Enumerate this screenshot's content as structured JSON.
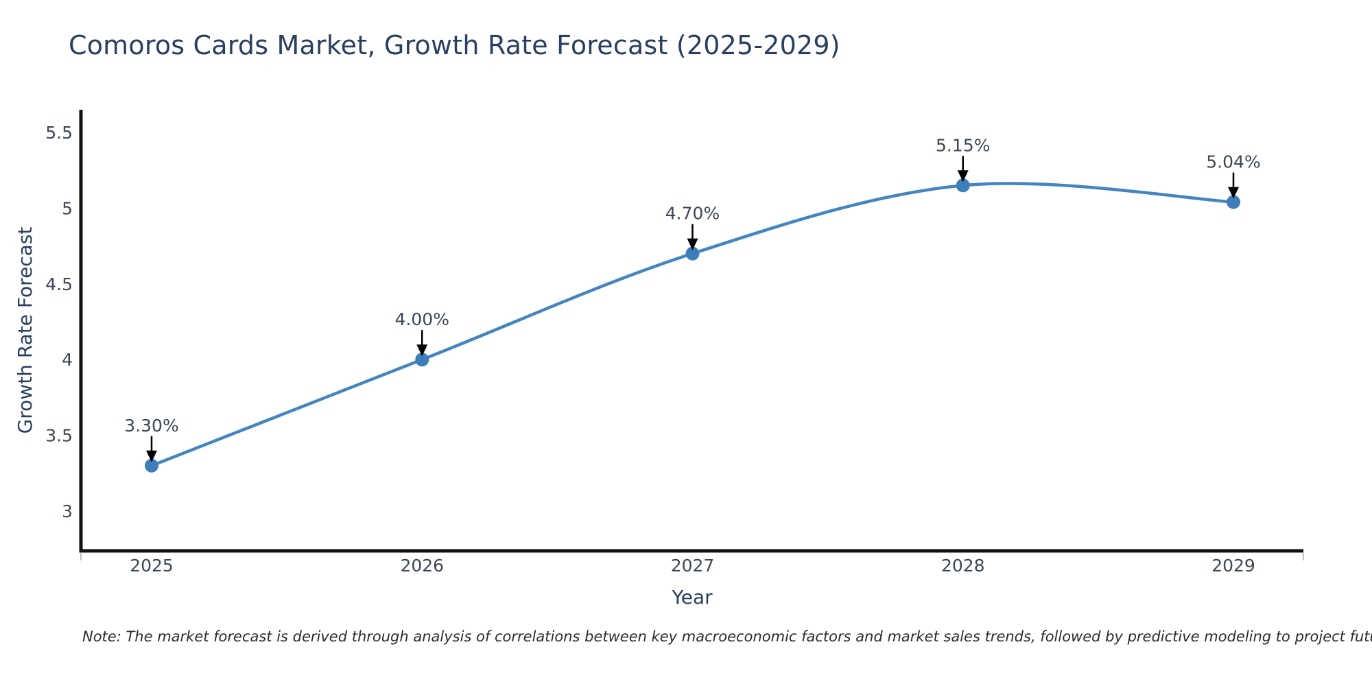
{
  "chart": {
    "title": "Comoros Cards Market, Growth Rate Forecast (2025-2029)",
    "note": "Note: The market forecast is derived through analysis of correlations between key macroeconomic factors and market sales trends, followed by predictive modeling to project future sales"
  },
  "chart_data": {
    "type": "line",
    "title": "Comoros Cards Market, Growth Rate Forecast (2025-2029)",
    "x": [
      2025,
      2026,
      2027,
      2028,
      2029
    ],
    "x_tick_labels": [
      "2025",
      "2026",
      "2027",
      "2028",
      "2029"
    ],
    "series": [
      {
        "name": "Growth Rate Forecast",
        "values": [
          3.3,
          4.0,
          4.7,
          5.15,
          5.04
        ],
        "point_labels": [
          "3.30%",
          "4.00%",
          "4.70%",
          "5.15%",
          "5.04%"
        ]
      }
    ],
    "xlabel": "Year",
    "ylabel": "Growth Rate Forecast",
    "yticks": [
      3,
      3.5,
      4,
      4.5,
      5,
      5.5
    ],
    "ytick_labels": [
      "3",
      "3.5",
      "4",
      "4.5",
      "5",
      "5.5"
    ],
    "ylim": [
      2.72,
      5.66
    ],
    "line_shape": "spline",
    "grid": false,
    "legend": "none",
    "annotations_style": "black-arrow-above-point",
    "colors": {
      "line": "#4485c1",
      "marker": "#3e7cba",
      "axis": "#111111",
      "text": "#2a3f5f",
      "tick_text": "#3b4754",
      "arrow": "#000000",
      "note_text": "#2b2b2b",
      "end_tick": "#aaaaaa"
    }
  }
}
